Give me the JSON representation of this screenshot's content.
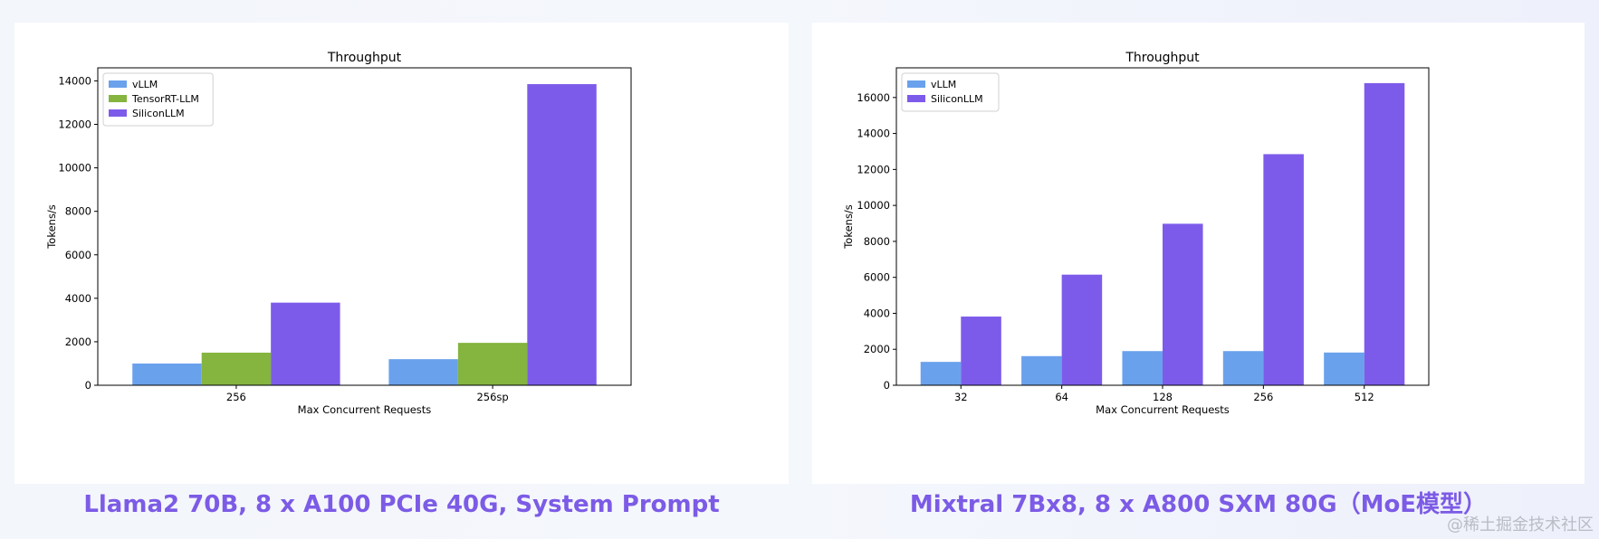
{
  "chart_data": [
    {
      "type": "bar",
      "title": "Throughput",
      "xlabel": "Max Concurrent Requests",
      "ylabel": "Tokens/s",
      "categories": [
        "256",
        "256sp"
      ],
      "ylim": [
        0,
        14600
      ],
      "yticks": [
        0,
        2000,
        4000,
        6000,
        8000,
        10000,
        12000,
        14000
      ],
      "legend_position": "top-left",
      "grid": false,
      "series": [
        {
          "name": "vLLM",
          "color": "#6aa1ec",
          "values": [
            1000,
            1200
          ]
        },
        {
          "name": "TensorRT-LLM",
          "color": "#85b43f",
          "values": [
            1500,
            1950
          ]
        },
        {
          "name": "SiliconLLM",
          "color": "#7d5bea",
          "values": [
            3800,
            13850
          ]
        }
      ]
    },
    {
      "type": "bar",
      "title": "Throughput",
      "xlabel": "Max Concurrent Requests",
      "ylabel": "Tokens/s",
      "categories": [
        "32",
        "64",
        "128",
        "256",
        "512"
      ],
      "ylim": [
        0,
        17650
      ],
      "yticks": [
        0,
        2000,
        4000,
        6000,
        8000,
        10000,
        12000,
        14000,
        16000
      ],
      "legend_position": "top-left",
      "grid": false,
      "series": [
        {
          "name": "vLLM",
          "color": "#6aa1ec",
          "values": [
            1300,
            1620,
            1900,
            1900,
            1820
          ]
        },
        {
          "name": "SiliconLLM",
          "color": "#7d5bea",
          "values": [
            3820,
            6150,
            8980,
            12850,
            16800
          ]
        }
      ]
    }
  ],
  "captions": {
    "left": "Llama2 70B, 8 x A100 PCIe 40G, System Prompt",
    "right": "Mixtral 7Bx8, 8 x A800 SXM 80G（MoE模型）"
  },
  "watermark": "@稀土掘金技术社区"
}
